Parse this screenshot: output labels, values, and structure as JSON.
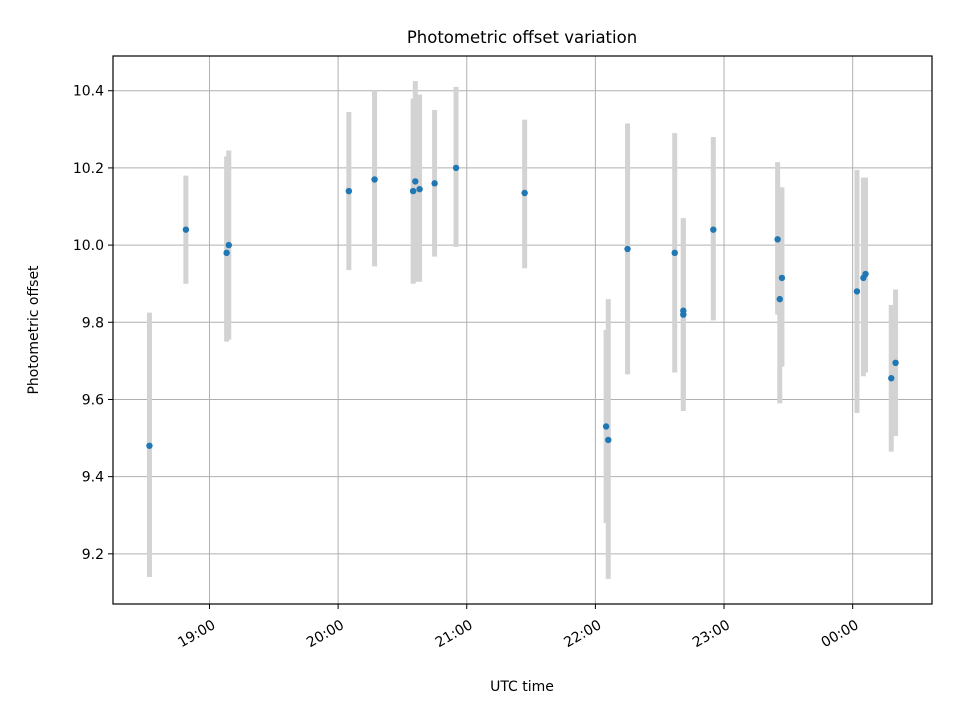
{
  "chart_data": {
    "type": "scatter",
    "title": "Photometric offset variation",
    "xlabel": "UTC time",
    "ylabel": "Photometric offset",
    "x_axis": "time",
    "x_ticks": [
      "19:00",
      "20:00",
      "21:00",
      "22:00",
      "23:00",
      "00:00"
    ],
    "y_ticks": [
      "9.2",
      "9.4",
      "9.6",
      "9.8",
      "10.0",
      "10.2",
      "10.4"
    ],
    "xlim": [
      "18:15",
      "00:37"
    ],
    "ylim": [
      9.07,
      10.49
    ],
    "grid": true,
    "point_color": "#1f77b4",
    "errorbar_color": "#d3d3d3",
    "points": [
      {
        "time": "18:32",
        "y": 9.48,
        "low": 9.14,
        "high": 9.825
      },
      {
        "time": "18:49",
        "y": 10.04,
        "low": 9.9,
        "high": 10.18
      },
      {
        "time": "19:08",
        "y": 9.98,
        "low": 9.75,
        "high": 10.23
      },
      {
        "time": "19:09",
        "y": 10.0,
        "low": 9.755,
        "high": 10.245
      },
      {
        "time": "20:05",
        "y": 10.14,
        "low": 9.935,
        "high": 10.345
      },
      {
        "time": "20:17",
        "y": 10.17,
        "low": 9.945,
        "high": 10.4
      },
      {
        "time": "20:35",
        "y": 10.14,
        "low": 9.9,
        "high": 10.38
      },
      {
        "time": "20:36",
        "y": 10.165,
        "low": 9.905,
        "high": 10.425
      },
      {
        "time": "20:38",
        "y": 10.145,
        "low": 9.905,
        "high": 10.39
      },
      {
        "time": "20:45",
        "y": 10.16,
        "low": 9.97,
        "high": 10.35
      },
      {
        "time": "20:55",
        "y": 10.2,
        "low": 9.995,
        "high": 10.41
      },
      {
        "time": "21:27",
        "y": 10.135,
        "low": 9.94,
        "high": 10.325
      },
      {
        "time": "22:05",
        "y": 9.53,
        "low": 9.28,
        "high": 9.78
      },
      {
        "time": "22:06",
        "y": 9.495,
        "low": 9.135,
        "high": 9.86
      },
      {
        "time": "22:15",
        "y": 9.99,
        "low": 9.665,
        "high": 10.315
      },
      {
        "time": "22:37",
        "y": 9.98,
        "low": 9.67,
        "high": 10.29
      },
      {
        "time": "22:41",
        "y": 9.83,
        "low": 9.6,
        "high": 10.065
      },
      {
        "time": "22:41",
        "y": 9.82,
        "low": 9.57,
        "high": 10.07
      },
      {
        "time": "22:55",
        "y": 10.04,
        "low": 9.805,
        "high": 10.28
      },
      {
        "time": "23:25",
        "y": 10.015,
        "low": 9.82,
        "high": 10.215
      },
      {
        "time": "23:26",
        "y": 9.86,
        "low": 9.59,
        "high": 10.135
      },
      {
        "time": "23:27",
        "y": 9.915,
        "low": 9.685,
        "high": 10.15
      },
      {
        "time": "00:02",
        "y": 9.88,
        "low": 9.565,
        "high": 10.195
      },
      {
        "time": "00:05",
        "y": 9.915,
        "low": 9.66,
        "high": 10.175
      },
      {
        "time": "00:06",
        "y": 9.925,
        "low": 9.67,
        "high": 10.175
      },
      {
        "time": "00:18",
        "y": 9.655,
        "low": 9.465,
        "high": 9.845
      },
      {
        "time": "00:20",
        "y": 9.695,
        "low": 9.505,
        "high": 9.885
      }
    ]
  }
}
